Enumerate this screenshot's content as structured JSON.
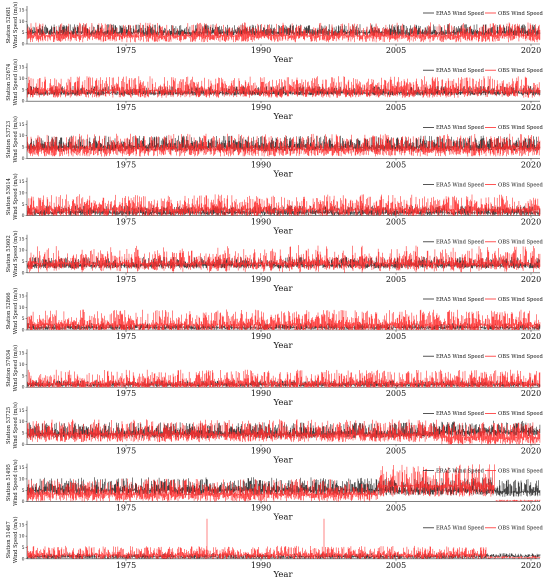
{
  "chart_data": {
    "type": "line",
    "x_axis": {
      "ticks": [
        "1975",
        "1990",
        "2005",
        "2020"
      ],
      "label": "Year"
    },
    "legend": [
      "ERA5  Wind Speed",
      "OBS  Wind Speed"
    ],
    "series_colors": {
      "era5": "#2a2a2a",
      "obs": "#ff2a2a"
    },
    "panels": [
      {
        "station_label": "Station  52681",
        "ylabel": "Wind Speed (m/s)",
        "y_ticks": [
          "0",
          "5",
          "10",
          "15"
        ]
      },
      {
        "station_label": "Station  52674",
        "ylabel": "Wind Speed (m/s)",
        "y_ticks": [
          "0",
          "5",
          "10",
          "15"
        ]
      },
      {
        "station_label": "Station  53723",
        "ylabel": "Wind Speed (m/s)",
        "y_ticks": [
          "0",
          "5",
          "10",
          "15"
        ]
      },
      {
        "station_label": "Station  53614",
        "ylabel": "Wind Speed (m/s)",
        "y_ticks": [
          "0",
          "5",
          "10",
          "15"
        ]
      },
      {
        "station_label": "Station  53602",
        "ylabel": "Wind Speed (m/s)",
        "y_ticks": [
          "0",
          "5",
          "10",
          "15"
        ]
      },
      {
        "station_label": "Station  52866",
        "ylabel": "Wind Speed (m/s)",
        "y_ticks": [
          "0",
          "5",
          "10",
          "15"
        ]
      },
      {
        "station_label": "Station  57034",
        "ylabel": "Wind Speed (m/s)",
        "y_ticks": [
          "0",
          "5",
          "10",
          "15"
        ]
      },
      {
        "station_label": "Station  53725",
        "ylabel": "Wind Speed (m/s)",
        "y_ticks": [
          "0",
          "5",
          "10",
          "15"
        ]
      },
      {
        "station_label": "Station  51495",
        "ylabel": "Wind Speed (m/s)",
        "y_ticks": [
          "0",
          "5",
          "10",
          "15"
        ]
      },
      {
        "station_label": "Station  51467",
        "ylabel": "Wind Speed (m/s)",
        "y_ticks": [
          "0",
          "5",
          "10",
          "15"
        ]
      }
    ]
  }
}
